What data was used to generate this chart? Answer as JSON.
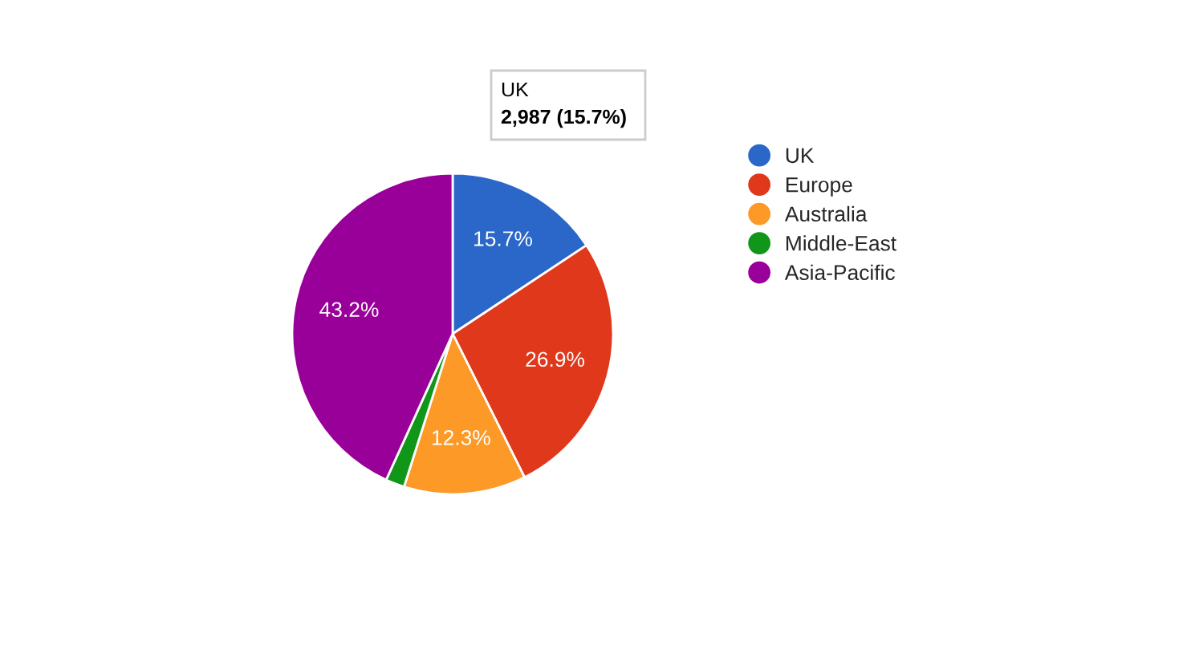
{
  "chart_data": {
    "type": "pie",
    "categories": [
      "UK",
      "Europe",
      "Australia",
      "Middle-East",
      "Asia-Pacific"
    ],
    "values": [
      15.7,
      26.9,
      12.3,
      1.9,
      43.2
    ],
    "colors": [
      "#2b66c9",
      "#e0381b",
      "#fd9927",
      "#109618",
      "#990099"
    ],
    "value_labels": [
      "15.7%",
      "26.9%",
      "12.3%",
      null,
      "43.2%"
    ],
    "annotations": [
      "UK",
      "2,987 (15.7%)"
    ],
    "legend": "right"
  }
}
